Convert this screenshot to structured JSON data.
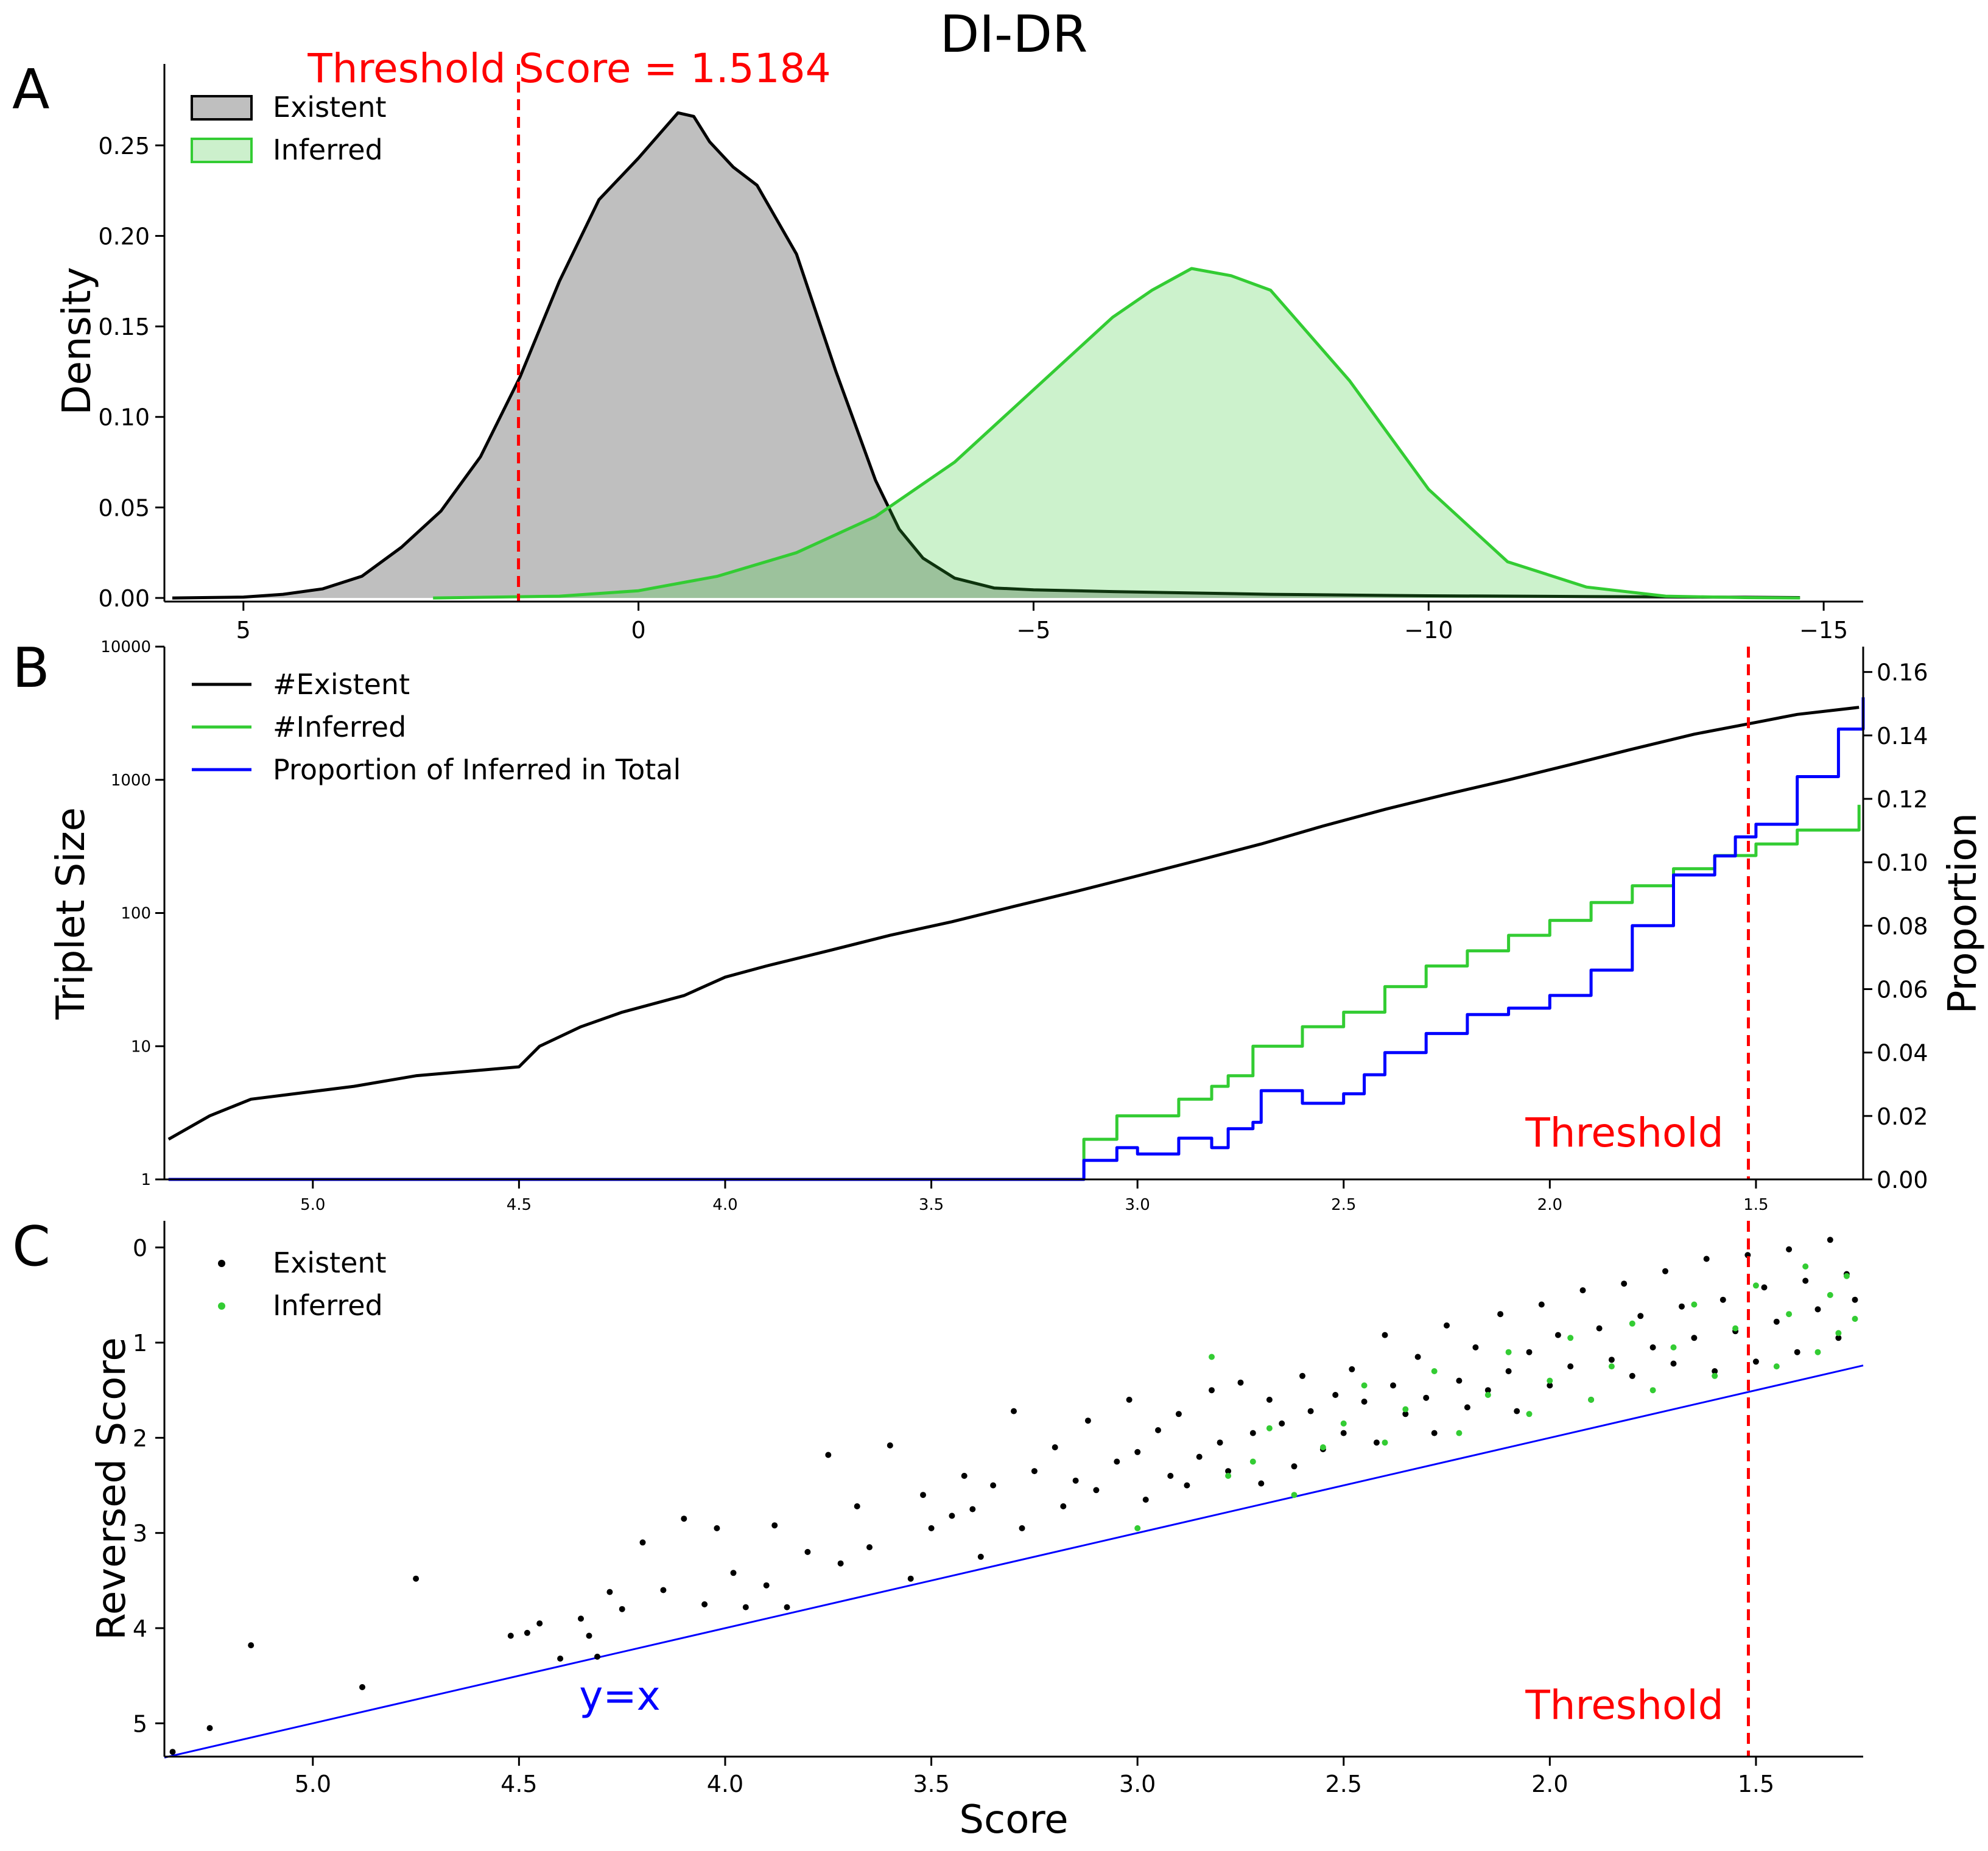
{
  "figure": {
    "title": "DI-DR",
    "colors": {
      "existent": "#000000",
      "inferred": "#33cc33",
      "proportion": "#0000ff",
      "threshold": "#ff0000",
      "yx": "#0000ff"
    }
  },
  "chart_data": [
    {
      "panel": "A",
      "type": "area",
      "xlabel": "",
      "ylabel": "Density",
      "xlim": [
        6.0,
        -15.5
      ],
      "ylim": [
        -0.002,
        0.295
      ],
      "xticks": [
        "5",
        "0",
        "−5",
        "−10",
        "−15"
      ],
      "xtick_values": [
        5,
        0,
        -5,
        -10,
        -15
      ],
      "yticks": [
        "0.00",
        "0.05",
        "0.10",
        "0.15",
        "0.20",
        "0.25"
      ],
      "ytick_values": [
        0,
        0.05,
        0.1,
        0.15,
        0.2,
        0.25
      ],
      "legend": "top-left",
      "threshold": {
        "x": 1.5184,
        "label": "Threshold Score = 1.5184"
      },
      "series": [
        {
          "name": "Existent",
          "x": [
            5.9,
            5.0,
            4.5,
            4.0,
            3.5,
            3.0,
            2.5,
            2.0,
            1.5,
            1.0,
            0.5,
            0.0,
            -0.3,
            -0.5,
            -0.7,
            -0.9,
            -1.2,
            -1.5,
            -2.0,
            -2.5,
            -3.0,
            -3.3,
            -3.6,
            -4.0,
            -4.5,
            -5.0,
            -6.0,
            -8.0,
            -10.0,
            -12.0,
            -14.0,
            -14.7
          ],
          "values": [
            0.0,
            0.0005,
            0.002,
            0.005,
            0.012,
            0.028,
            0.048,
            0.078,
            0.122,
            0.175,
            0.22,
            0.243,
            0.258,
            0.268,
            0.266,
            0.252,
            0.238,
            0.228,
            0.19,
            0.125,
            0.065,
            0.038,
            0.022,
            0.011,
            0.0055,
            0.0045,
            0.0035,
            0.002,
            0.0012,
            0.0008,
            0.0004,
            0.0002
          ]
        },
        {
          "name": "Inferred",
          "x": [
            2.6,
            1.0,
            0.0,
            -1.0,
            -2.0,
            -3.0,
            -4.0,
            -5.0,
            -6.0,
            -6.5,
            -7.0,
            -7.5,
            -8.0,
            -9.0,
            -10.0,
            -11.0,
            -12.0,
            -13.0,
            -14.0,
            -14.7
          ],
          "values": [
            0.0,
            0.001,
            0.004,
            0.012,
            0.025,
            0.045,
            0.075,
            0.115,
            0.155,
            0.17,
            0.182,
            0.178,
            0.17,
            0.12,
            0.06,
            0.02,
            0.006,
            0.001,
            0.0002,
            0.0
          ]
        }
      ]
    },
    {
      "panel": "B",
      "type": "line",
      "xlabel": "",
      "ylabel": "Triplet Size",
      "y2label": "Proportion",
      "xlim": [
        5.36,
        1.24
      ],
      "ylim": [
        1,
        10000
      ],
      "yscale": "log",
      "y2lim": [
        0,
        0.168
      ],
      "xticks": [
        "5.0",
        "4.5",
        "4.0",
        "3.5",
        "3.0",
        "2.5",
        "2.0",
        "1.5"
      ],
      "xtick_values": [
        5.0,
        4.5,
        4.0,
        3.5,
        3.0,
        2.5,
        2.0,
        1.5
      ],
      "yticks": [
        "1",
        "10",
        "100",
        "1000",
        "10000"
      ],
      "ytick_values": [
        1,
        10,
        100,
        1000,
        10000
      ],
      "y2ticks": [
        "0.00",
        "0.02",
        "0.04",
        "0.06",
        "0.08",
        "0.10",
        "0.12",
        "0.14",
        "0.16"
      ],
      "y2tick_values": [
        0,
        0.02,
        0.04,
        0.06,
        0.08,
        0.1,
        0.12,
        0.14,
        0.16
      ],
      "legend": "top-left",
      "threshold": {
        "x": 1.5184,
        "label": "Threshold"
      },
      "series": [
        {
          "name": "#Existent",
          "axis": "left",
          "x": [
            5.35,
            5.25,
            5.15,
            4.9,
            4.75,
            4.5,
            4.45,
            4.35,
            4.25,
            4.1,
            4.0,
            3.9,
            3.75,
            3.6,
            3.45,
            3.3,
            3.15,
            3.0,
            2.85,
            2.7,
            2.55,
            2.4,
            2.25,
            2.1,
            1.95,
            1.8,
            1.65,
            1.5,
            1.4,
            1.25
          ],
          "values": [
            2,
            3,
            4,
            5,
            6,
            7,
            10,
            14,
            18,
            24,
            33,
            40,
            52,
            68,
            86,
            112,
            145,
            190,
            250,
            330,
            450,
            600,
            780,
            1000,
            1300,
            1700,
            2200,
            2700,
            3100,
            3500
          ]
        },
        {
          "name": "#Inferred",
          "axis": "left",
          "x": [
            5.35,
            3.14,
            3.13,
            3.05,
            2.9,
            2.82,
            2.78,
            2.72,
            2.6,
            2.5,
            2.4,
            2.3,
            2.2,
            2.1,
            2.0,
            1.9,
            1.8,
            1.7,
            1.6,
            1.5,
            1.4,
            1.25
          ],
          "values": [
            1,
            1,
            2,
            3,
            4,
            5,
            6,
            10,
            14,
            18,
            28,
            40,
            52,
            68,
            88,
            120,
            160,
            215,
            270,
            330,
            420,
            650
          ]
        },
        {
          "name": "Proportion of Inferred in Total",
          "axis": "right",
          "x": [
            5.35,
            3.14,
            3.13,
            3.05,
            3.0,
            2.9,
            2.82,
            2.78,
            2.72,
            2.7,
            2.6,
            2.5,
            2.45,
            2.4,
            2.3,
            2.2,
            2.1,
            2.0,
            1.9,
            1.8,
            1.7,
            1.6,
            1.55,
            1.5,
            1.4,
            1.3,
            1.24
          ],
          "values": [
            0,
            0,
            0.006,
            0.01,
            0.008,
            0.013,
            0.01,
            0.016,
            0.018,
            0.028,
            0.024,
            0.027,
            0.033,
            0.04,
            0.046,
            0.052,
            0.054,
            0.058,
            0.066,
            0.08,
            0.096,
            0.102,
            0.108,
            0.112,
            0.127,
            0.142,
            0.152
          ]
        }
      ]
    },
    {
      "panel": "C",
      "type": "scatter",
      "xlabel": "Score",
      "ylabel": "Reversed Score",
      "xlim": [
        5.36,
        1.24
      ],
      "ylim": [
        5.35,
        -0.28
      ],
      "xticks": [
        "5.0",
        "4.5",
        "4.0",
        "3.5",
        "3.0",
        "2.5",
        "2.0",
        "1.5"
      ],
      "xtick_values": [
        5.0,
        4.5,
        4.0,
        3.5,
        3.0,
        2.5,
        2.0,
        1.5
      ],
      "yticks": [
        "0",
        "1",
        "2",
        "3",
        "4",
        "5"
      ],
      "ytick_values": [
        0,
        1,
        2,
        3,
        4,
        5
      ],
      "legend": "top-left",
      "threshold": {
        "x": 1.5184,
        "label": "Threshold"
      },
      "reference_line": {
        "label": "y=x",
        "x": [
          5.36,
          1.24
        ],
        "y": [
          5.36,
          1.24
        ]
      },
      "series": [
        {
          "name": "Existent",
          "x": [
            5.34,
            5.25,
            5.15,
            4.88,
            4.75,
            4.52,
            4.48,
            4.45,
            4.4,
            4.35,
            4.33,
            4.31,
            4.28,
            4.25,
            4.2,
            4.15,
            4.1,
            4.05,
            4.02,
            3.98,
            3.95,
            3.9,
            3.88,
            3.85,
            3.8,
            3.75,
            3.72,
            3.68,
            3.65,
            3.6,
            3.55,
            3.52,
            3.5,
            3.45,
            3.42,
            3.4,
            3.38,
            3.35,
            3.3,
            3.28,
            3.25,
            3.2,
            3.18,
            3.15,
            3.12,
            3.1,
            3.05,
            3.02,
            3.0,
            2.98,
            2.95,
            2.92,
            2.9,
            2.88,
            2.85,
            2.82,
            2.8,
            2.78,
            2.75,
            2.72,
            2.7,
            2.68,
            2.65,
            2.62,
            2.6,
            2.58,
            2.55,
            2.52,
            2.5,
            2.48,
            2.45,
            2.42,
            2.4,
            2.38,
            2.35,
            2.32,
            2.3,
            2.28,
            2.25,
            2.22,
            2.2,
            2.18,
            2.15,
            2.12,
            2.1,
            2.08,
            2.05,
            2.02,
            2.0,
            1.98,
            1.95,
            1.92,
            1.9,
            1.88,
            1.85,
            1.82,
            1.8,
            1.78,
            1.75,
            1.72,
            1.7,
            1.68,
            1.65,
            1.62,
            1.6,
            1.58,
            1.55,
            1.52,
            1.5,
            1.48,
            1.45,
            1.42,
            1.4,
            1.38,
            1.35,
            1.32,
            1.3,
            1.28,
            1.26
          ],
          "values": [
            5.3,
            5.05,
            4.18,
            4.62,
            3.48,
            4.08,
            4.05,
            3.95,
            4.32,
            3.9,
            4.08,
            4.3,
            3.62,
            3.8,
            3.1,
            3.6,
            2.85,
            3.75,
            2.95,
            3.42,
            3.78,
            3.55,
            2.92,
            3.78,
            3.2,
            2.18,
            3.32,
            2.72,
            3.15,
            2.08,
            3.48,
            2.6,
            2.95,
            2.82,
            2.4,
            2.75,
            3.25,
            2.5,
            1.72,
            2.95,
            2.35,
            2.1,
            2.72,
            2.45,
            1.82,
            2.55,
            2.25,
            1.6,
            2.15,
            2.65,
            1.92,
            2.4,
            1.75,
            2.5,
            2.2,
            1.5,
            2.05,
            2.35,
            1.42,
            1.95,
            2.48,
            1.6,
            1.85,
            2.3,
            1.35,
            1.72,
            2.12,
            1.55,
            1.95,
            1.28,
            1.62,
            2.05,
            0.92,
            1.45,
            1.75,
            1.15,
            1.58,
            1.95,
            0.82,
            1.4,
            1.68,
            1.05,
            1.5,
            0.7,
            1.3,
            1.72,
            1.1,
            0.6,
            1.45,
            0.92,
            1.25,
            0.45,
            1.6,
            0.85,
            1.18,
            0.38,
            1.35,
            0.72,
            1.05,
            0.25,
            1.22,
            0.62,
            0.95,
            0.12,
            1.3,
            0.55,
            0.88,
            0.08,
            1.2,
            0.42,
            0.78,
            0.02,
            1.1,
            0.35,
            0.65,
            -0.08,
            0.95,
            0.28,
            0.55
          ]
        },
        {
          "name": "Inferred",
          "x": [
            3.0,
            2.82,
            2.78,
            2.72,
            2.68,
            2.62,
            2.55,
            2.5,
            2.45,
            2.4,
            2.35,
            2.28,
            2.22,
            2.15,
            2.1,
            2.05,
            2.0,
            1.95,
            1.9,
            1.85,
            1.8,
            1.75,
            1.7,
            1.65,
            1.6,
            1.55,
            1.5,
            1.45,
            1.42,
            1.38,
            1.35,
            1.32,
            1.3,
            1.28,
            1.26
          ],
          "values": [
            2.95,
            1.15,
            2.4,
            2.25,
            1.9,
            2.6,
            2.1,
            1.85,
            1.45,
            2.05,
            1.7,
            1.3,
            1.95,
            1.55,
            1.1,
            1.75,
            1.4,
            0.95,
            1.6,
            1.25,
            0.8,
            1.5,
            1.05,
            0.6,
            1.35,
            0.85,
            0.4,
            1.25,
            0.7,
            0.2,
            1.1,
            0.5,
            0.9,
            0.3,
            0.75
          ]
        }
      ]
    }
  ]
}
